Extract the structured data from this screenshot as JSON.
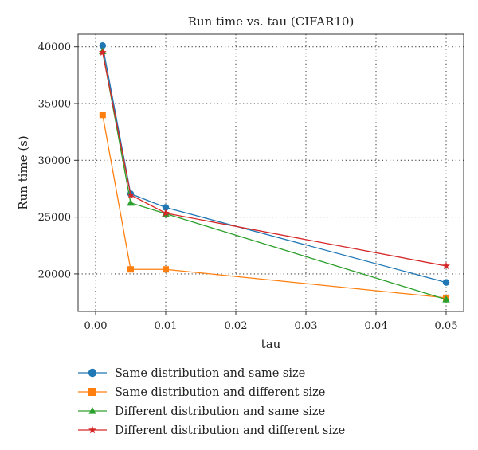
{
  "chart_data": {
    "type": "line",
    "title": "Run time vs. tau (CIFAR10)",
    "xlabel": "tau",
    "ylabel": "Run time (s)",
    "xlim": [
      -0.0025,
      0.0525
    ],
    "ylim": [
      16700,
      41100
    ],
    "xticks": [
      0.0,
      0.01,
      0.02,
      0.03,
      0.04,
      0.05
    ],
    "xtick_labels": [
      "0.00",
      "0.01",
      "0.02",
      "0.03",
      "0.04",
      "0.05"
    ],
    "yticks": [
      20000,
      25000,
      30000,
      35000,
      40000
    ],
    "ytick_labels": [
      "20000",
      "25000",
      "30000",
      "35000",
      "40000"
    ],
    "grid": "dotted",
    "legend_position": "below",
    "x": [
      0.001,
      0.005,
      0.01,
      0.05
    ],
    "series": [
      {
        "name": "Same distribution and same size",
        "color": "#1f77b4",
        "marker": "circle",
        "values": [
          40100,
          27050,
          25850,
          19250
        ]
      },
      {
        "name": "Same distribution and different size",
        "color": "#ff7f0e",
        "marker": "square",
        "values": [
          34000,
          20400,
          20400,
          17900
        ]
      },
      {
        "name": "Different distribution and same size",
        "color": "#2ca02c",
        "marker": "triangle",
        "values": [
          39600,
          26250,
          25300,
          17750
        ]
      },
      {
        "name": "Different distribution and different size",
        "color": "#d62728",
        "marker": "star",
        "values": [
          39500,
          26950,
          25350,
          20700
        ]
      }
    ]
  }
}
